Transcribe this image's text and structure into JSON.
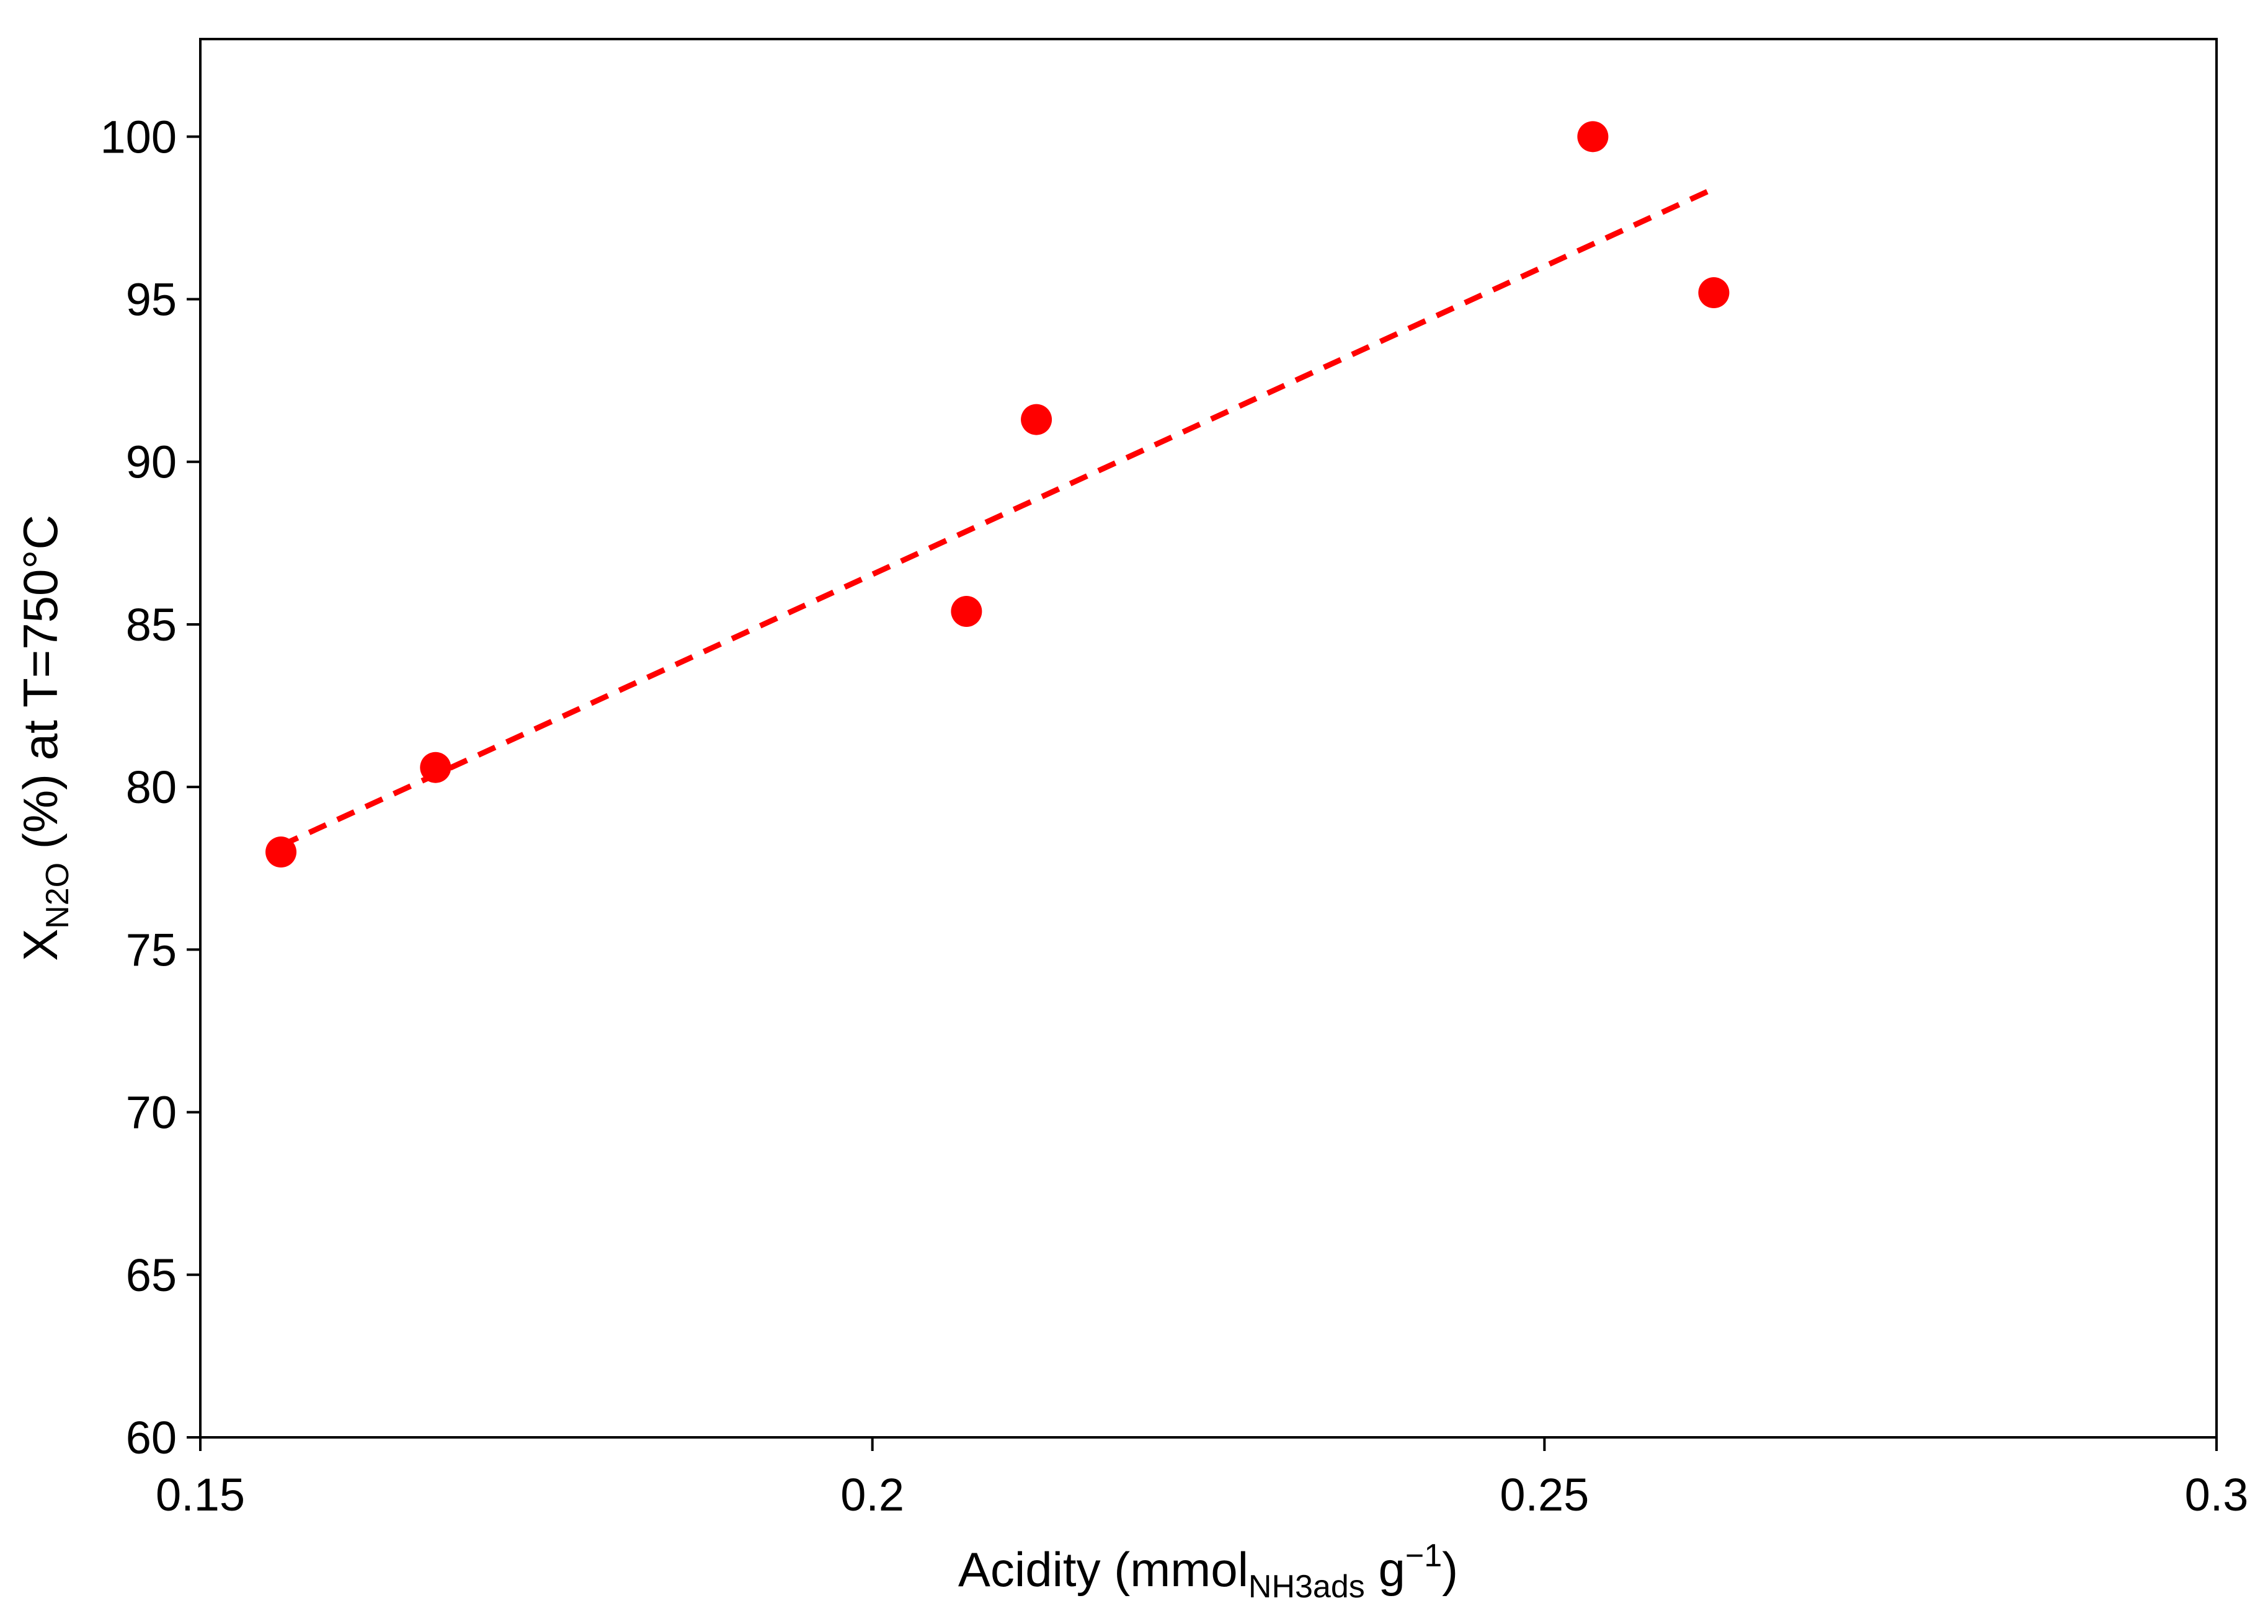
{
  "chart_data": {
    "type": "scatter",
    "title": "",
    "xlabel": {
      "main": "Acidity (mmol",
      "sub": "NH3ads",
      "after": " g",
      "sup": "−1",
      "end": ")"
    },
    "ylabel": {
      "main": "X",
      "sub": "N2O",
      "rest": " (%) at T=750°C"
    },
    "xlim": [
      0.15,
      0.3
    ],
    "ylim": [
      60,
      103
    ],
    "x_ticks": [
      0.15,
      0.2,
      0.25,
      0.3
    ],
    "x_tick_labels": [
      "0.15",
      "0.2",
      "0.25",
      "0.3"
    ],
    "y_ticks": [
      60,
      65,
      70,
      75,
      80,
      85,
      90,
      95,
      100
    ],
    "y_tick_labels": [
      "60",
      "65",
      "70",
      "75",
      "80",
      "85",
      "90",
      "95",
      "100"
    ],
    "grid": false,
    "legend": "none",
    "series": [
      {
        "type": "scatter",
        "color": "#ff0000",
        "x": [
          0.156,
          0.1675,
          0.207,
          0.2122,
          0.2536,
          0.2626
        ],
        "y": [
          78.0,
          80.6,
          85.4,
          91.3,
          100.0,
          95.2
        ]
      },
      {
        "type": "line",
        "style": "dashed",
        "color": "#ff0000",
        "x": [
          0.156,
          0.2626
        ],
        "y": [
          78.2,
          98.4
        ]
      }
    ]
  }
}
